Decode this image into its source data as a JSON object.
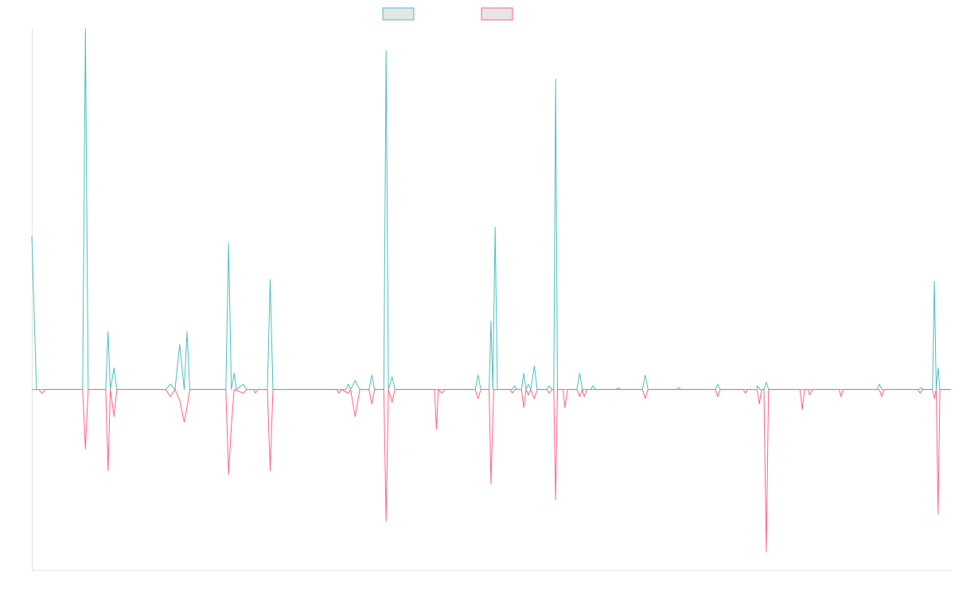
{
  "chart_data": {
    "type": "line",
    "title": "",
    "xlabel": "",
    "ylabel": "",
    "x_count": 200,
    "ylim": [
      -100,
      200
    ],
    "xlim": [
      0,
      199
    ],
    "grid": false,
    "legend": {
      "position": "top-center",
      "labels_visible": false
    },
    "series": [
      {
        "color": "#4bc0c0",
        "fill": "#e5e5e5",
        "points": [
          [
            0,
            85
          ],
          [
            1,
            0
          ],
          [
            2,
            0
          ],
          [
            11,
            0
          ],
          [
            11.6,
            200
          ],
          [
            12.2,
            0
          ],
          [
            16,
            0
          ],
          [
            16.5,
            32
          ],
          [
            17,
            0
          ],
          [
            17.8,
            12
          ],
          [
            18.4,
            0
          ],
          [
            29,
            0
          ],
          [
            30,
            3
          ],
          [
            31,
            0
          ],
          [
            32,
            25
          ],
          [
            33,
            0
          ],
          [
            33.6,
            32
          ],
          [
            34.2,
            0
          ],
          [
            42,
            0
          ],
          [
            42.6,
            81
          ],
          [
            43.2,
            0
          ],
          [
            43.8,
            9
          ],
          [
            44.3,
            0
          ],
          [
            45.8,
            3
          ],
          [
            46.5,
            0
          ],
          [
            51,
            0
          ],
          [
            51.6,
            61
          ],
          [
            52.2,
            0
          ],
          [
            68,
            0
          ],
          [
            68.5,
            3
          ],
          [
            69,
            0
          ],
          [
            70,
            5
          ],
          [
            71,
            0
          ],
          [
            73,
            0
          ],
          [
            73.6,
            8
          ],
          [
            74.2,
            0
          ],
          [
            76.2,
            0
          ],
          [
            76.7,
            188
          ],
          [
            77.2,
            0
          ],
          [
            78,
            7
          ],
          [
            78.6,
            0
          ],
          [
            96,
            0
          ],
          [
            96.6,
            8
          ],
          [
            97.2,
            0
          ],
          [
            99,
            0
          ],
          [
            99.4,
            38
          ],
          [
            99.8,
            0
          ],
          [
            100.3,
            90
          ],
          [
            100.8,
            0
          ],
          [
            104,
            0
          ],
          [
            104.5,
            2
          ],
          [
            105,
            0
          ],
          [
            106,
            0
          ],
          [
            106.5,
            9
          ],
          [
            107,
            0
          ],
          [
            107.5,
            3
          ],
          [
            108,
            0
          ],
          [
            108.8,
            13
          ],
          [
            109.4,
            0
          ],
          [
            111.5,
            0
          ],
          [
            112,
            2
          ],
          [
            112.6,
            0
          ],
          [
            113,
            0
          ],
          [
            113.4,
            172
          ],
          [
            113.8,
            0
          ],
          [
            118,
            0
          ],
          [
            118.6,
            9
          ],
          [
            119.2,
            0
          ],
          [
            121,
            0
          ],
          [
            121.5,
            2
          ],
          [
            122,
            0
          ],
          [
            126.5,
            0
          ],
          [
            127,
            1
          ],
          [
            127.5,
            0
          ],
          [
            132.2,
            0
          ],
          [
            132.8,
            8
          ],
          [
            133.4,
            0
          ],
          [
            139.5,
            0
          ],
          [
            140,
            1
          ],
          [
            140.5,
            0
          ],
          [
            148,
            0
          ],
          [
            148.5,
            3
          ],
          [
            149,
            0
          ],
          [
            157,
            0
          ],
          [
            157.5,
            1
          ],
          [
            158,
            0
          ],
          [
            156.5,
            0
          ],
          [
            157,
            2
          ],
          [
            157.5,
            0
          ],
          [
            158.5,
            0
          ],
          [
            159,
            4
          ],
          [
            159.5,
            0
          ],
          [
            162,
            0
          ],
          [
            162,
            0
          ],
          [
            160,
            0
          ],
          [
            161.2,
            0
          ],
          [
            165,
            0
          ],
          [
            165.6,
            0
          ],
          [
            166.3,
            0
          ],
          [
            167,
            0
          ],
          [
            168,
            0
          ],
          [
            169,
            0
          ],
          [
            170,
            0
          ],
          [
            171,
            0
          ],
          [
            172,
            0
          ],
          [
            173,
            0
          ],
          [
            174,
            0
          ],
          [
            175,
            0
          ],
          [
            176,
            0
          ],
          [
            177,
            0
          ],
          [
            183,
            0
          ],
          [
            183.5,
            3
          ],
          [
            184,
            0
          ],
          [
            192,
            0
          ],
          [
            192.5,
            1
          ],
          [
            193,
            0
          ],
          [
            195,
            0
          ],
          [
            195.4,
            60
          ],
          [
            195.8,
            0
          ],
          [
            196.2,
            12
          ],
          [
            196.6,
            0
          ],
          [
            199,
            0
          ]
        ]
      },
      {
        "color": "#ff6384",
        "fill": "#e5e5e5",
        "points": [
          [
            0,
            0
          ],
          [
            1.5,
            0
          ],
          [
            2.2,
            -2
          ],
          [
            3,
            0
          ],
          [
            11,
            0
          ],
          [
            11.6,
            -33
          ],
          [
            12.2,
            0
          ],
          [
            16,
            0
          ],
          [
            16.5,
            -45
          ],
          [
            17,
            0
          ],
          [
            17.8,
            -15
          ],
          [
            18.4,
            0
          ],
          [
            29,
            0
          ],
          [
            30,
            -4
          ],
          [
            31,
            0
          ],
          [
            32,
            -6
          ],
          [
            33,
            -18
          ],
          [
            33.6,
            -10
          ],
          [
            34.2,
            0
          ],
          [
            42,
            0
          ],
          [
            42.6,
            -47
          ],
          [
            43.2,
            -20
          ],
          [
            43.8,
            0
          ],
          [
            45.8,
            -2
          ],
          [
            46.5,
            0
          ],
          [
            48,
            0
          ],
          [
            48.4,
            -2
          ],
          [
            49,
            0
          ],
          [
            51,
            0
          ],
          [
            51.6,
            -45
          ],
          [
            52.2,
            0
          ],
          [
            66,
            0
          ],
          [
            66.5,
            -2
          ],
          [
            67,
            0
          ],
          [
            68.5,
            -2
          ],
          [
            69,
            0
          ],
          [
            70,
            -15
          ],
          [
            71,
            0
          ],
          [
            73,
            0
          ],
          [
            73.6,
            -8
          ],
          [
            74.2,
            0
          ],
          [
            76.2,
            0
          ],
          [
            76.7,
            -73
          ],
          [
            77.2,
            0
          ],
          [
            78,
            -7
          ],
          [
            78.6,
            0
          ],
          [
            87.2,
            0
          ],
          [
            87.6,
            -22
          ],
          [
            88,
            0
          ],
          [
            88.8,
            -2
          ],
          [
            89.4,
            0
          ],
          [
            96,
            0
          ],
          [
            96.6,
            -5
          ],
          [
            97.2,
            0
          ],
          [
            99,
            0
          ],
          [
            99.4,
            -52
          ],
          [
            100,
            0
          ],
          [
            103.6,
            0
          ],
          [
            104,
            -2
          ],
          [
            104.5,
            0
          ],
          [
            106,
            0
          ],
          [
            106.5,
            -10
          ],
          [
            107,
            0
          ],
          [
            107.5,
            -3
          ],
          [
            108,
            0
          ],
          [
            108.8,
            -5
          ],
          [
            109.4,
            0
          ],
          [
            111.5,
            0
          ],
          [
            112,
            -2
          ],
          [
            112.6,
            0
          ],
          [
            113,
            0
          ],
          [
            113.4,
            -61
          ],
          [
            113.8,
            0
          ],
          [
            115,
            0
          ],
          [
            115.4,
            -10
          ],
          [
            116,
            0
          ],
          [
            118,
            0
          ],
          [
            118.6,
            -4
          ],
          [
            119.2,
            0
          ],
          [
            119.6,
            -4
          ],
          [
            120.2,
            0
          ],
          [
            132.2,
            0
          ],
          [
            132.8,
            -5
          ],
          [
            133.4,
            0
          ],
          [
            148,
            0
          ],
          [
            148.5,
            -4
          ],
          [
            149,
            0
          ],
          [
            154,
            0
          ],
          [
            154.5,
            -2
          ],
          [
            155,
            0
          ],
          [
            157,
            0
          ],
          [
            157.5,
            -8
          ],
          [
            158,
            0
          ],
          [
            158.5,
            0
          ],
          [
            159,
            -90
          ],
          [
            159.5,
            0
          ],
          [
            166.3,
            0
          ],
          [
            166.8,
            -11
          ],
          [
            167.3,
            0
          ],
          [
            168,
            0
          ],
          [
            168.4,
            -3
          ],
          [
            169,
            0
          ],
          [
            174.8,
            0
          ],
          [
            175.2,
            -4
          ],
          [
            175.6,
            0
          ],
          [
            183.5,
            0
          ],
          [
            184,
            -4
          ],
          [
            184.5,
            0
          ],
          [
            191.8,
            0
          ],
          [
            192.3,
            -2
          ],
          [
            192.8,
            0
          ],
          [
            195,
            0
          ],
          [
            195.4,
            -5
          ],
          [
            195.8,
            0
          ],
          [
            196.2,
            -69
          ],
          [
            196.6,
            0
          ],
          [
            199,
            0
          ]
        ]
      }
    ]
  }
}
